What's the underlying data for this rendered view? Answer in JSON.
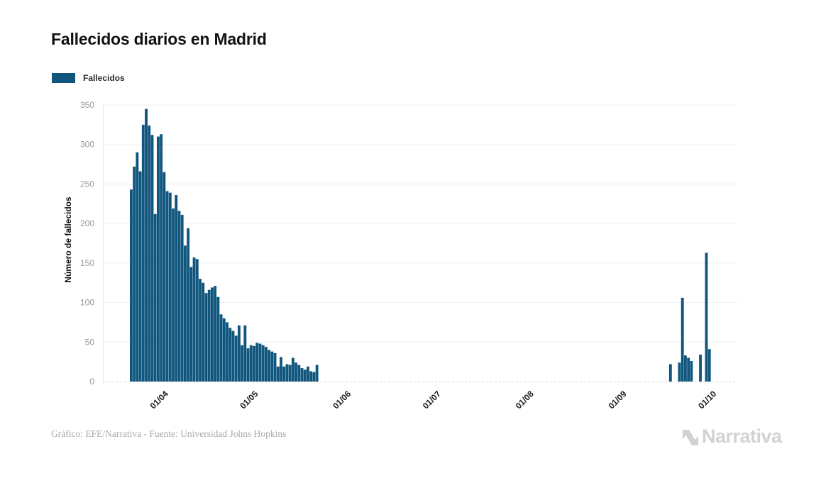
{
  "header": {
    "title": "Fallecidos diarios en Madrid"
  },
  "legend": {
    "items": [
      {
        "label": "Fallecidos",
        "color": "#11567D"
      }
    ]
  },
  "footer": {
    "credit": "Gráfico: EFE/Narrativa - Fuente: Universidad Johns Hopkins",
    "brand": "Narrativa"
  },
  "chart_data": {
    "type": "bar",
    "title": "Fallecidos diarios en Madrid",
    "xlabel": "",
    "ylabel": "Número de fallecidos",
    "ylim": [
      0,
      350
    ],
    "yticks": [
      0,
      50,
      100,
      150,
      200,
      250,
      300,
      350
    ],
    "grid": "horizontal",
    "legend_position": "top-left",
    "bar_color": "#11567D",
    "gridline_color": "#f0f0f0",
    "baseline_color": "#cfd8dd",
    "axisline_color": "#e9e9e9",
    "ytick_color": "#999999",
    "xtick_color": "#1a1a1a",
    "x_domain_dates": [
      "11/03/2020",
      "09/10/2020"
    ],
    "xticks": [
      {
        "label": "01/04",
        "date": "01/04/2020"
      },
      {
        "label": "01/05",
        "date": "01/05/2020"
      },
      {
        "label": "01/06",
        "date": "01/06/2020"
      },
      {
        "label": "01/07",
        "date": "01/07/2020"
      },
      {
        "label": "01/08",
        "date": "01/08/2020"
      },
      {
        "label": "01/09",
        "date": "01/09/2020"
      },
      {
        "label": "01/10",
        "date": "01/10/2020"
      }
    ],
    "series": [
      {
        "name": "Fallecidos",
        "points": [
          {
            "date": "20/03/2020",
            "value": 243
          },
          {
            "date": "21/03/2020",
            "value": 272
          },
          {
            "date": "22/03/2020",
            "value": 290
          },
          {
            "date": "23/03/2020",
            "value": 266
          },
          {
            "date": "24/03/2020",
            "value": 325
          },
          {
            "date": "25/03/2020",
            "value": 345
          },
          {
            "date": "26/03/2020",
            "value": 324
          },
          {
            "date": "27/03/2020",
            "value": 312
          },
          {
            "date": "28/03/2020",
            "value": 212
          },
          {
            "date": "29/03/2020",
            "value": 310
          },
          {
            "date": "30/03/2020",
            "value": 313
          },
          {
            "date": "31/03/2020",
            "value": 265
          },
          {
            "date": "01/04/2020",
            "value": 241
          },
          {
            "date": "02/04/2020",
            "value": 239
          },
          {
            "date": "03/04/2020",
            "value": 219
          },
          {
            "date": "04/04/2020",
            "value": 236
          },
          {
            "date": "05/04/2020",
            "value": 216
          },
          {
            "date": "06/04/2020",
            "value": 211
          },
          {
            "date": "07/04/2020",
            "value": 172
          },
          {
            "date": "08/04/2020",
            "value": 194
          },
          {
            "date": "09/04/2020",
            "value": 145
          },
          {
            "date": "10/04/2020",
            "value": 157
          },
          {
            "date": "11/04/2020",
            "value": 155
          },
          {
            "date": "12/04/2020",
            "value": 130
          },
          {
            "date": "13/04/2020",
            "value": 125
          },
          {
            "date": "14/04/2020",
            "value": 112
          },
          {
            "date": "15/04/2020",
            "value": 116
          },
          {
            "date": "16/04/2020",
            "value": 119
          },
          {
            "date": "17/04/2020",
            "value": 121
          },
          {
            "date": "18/04/2020",
            "value": 107
          },
          {
            "date": "19/04/2020",
            "value": 85
          },
          {
            "date": "20/04/2020",
            "value": 80
          },
          {
            "date": "21/04/2020",
            "value": 75
          },
          {
            "date": "22/04/2020",
            "value": 68
          },
          {
            "date": "23/04/2020",
            "value": 64
          },
          {
            "date": "24/04/2020",
            "value": 58
          },
          {
            "date": "25/04/2020",
            "value": 71
          },
          {
            "date": "26/04/2020",
            "value": 46
          },
          {
            "date": "27/04/2020",
            "value": 71
          },
          {
            "date": "28/04/2020",
            "value": 42
          },
          {
            "date": "29/04/2020",
            "value": 46
          },
          {
            "date": "30/04/2020",
            "value": 45
          },
          {
            "date": "01/05/2020",
            "value": 49
          },
          {
            "date": "02/05/2020",
            "value": 48
          },
          {
            "date": "03/05/2020",
            "value": 46
          },
          {
            "date": "04/05/2020",
            "value": 44
          },
          {
            "date": "05/05/2020",
            "value": 40
          },
          {
            "date": "06/05/2020",
            "value": 38
          },
          {
            "date": "07/05/2020",
            "value": 36
          },
          {
            "date": "08/05/2020",
            "value": 19
          },
          {
            "date": "09/05/2020",
            "value": 31
          },
          {
            "date": "10/05/2020",
            "value": 19
          },
          {
            "date": "11/05/2020",
            "value": 22
          },
          {
            "date": "12/05/2020",
            "value": 21
          },
          {
            "date": "13/05/2020",
            "value": 30
          },
          {
            "date": "14/05/2020",
            "value": 24
          },
          {
            "date": "15/05/2020",
            "value": 21
          },
          {
            "date": "16/05/2020",
            "value": 17
          },
          {
            "date": "17/05/2020",
            "value": 15
          },
          {
            "date": "18/05/2020",
            "value": 19
          },
          {
            "date": "19/05/2020",
            "value": 13
          },
          {
            "date": "20/05/2020",
            "value": 12
          },
          {
            "date": "21/05/2020",
            "value": 21
          },
          {
            "date": "16/09/2020",
            "value": 22
          },
          {
            "date": "19/09/2020",
            "value": 24
          },
          {
            "date": "20/09/2020",
            "value": 106
          },
          {
            "date": "21/09/2020",
            "value": 33
          },
          {
            "date": "22/09/2020",
            "value": 30
          },
          {
            "date": "23/09/2020",
            "value": 26
          },
          {
            "date": "26/09/2020",
            "value": 34
          },
          {
            "date": "28/09/2020",
            "value": 163
          },
          {
            "date": "29/09/2020",
            "value": 41
          }
        ]
      }
    ]
  }
}
